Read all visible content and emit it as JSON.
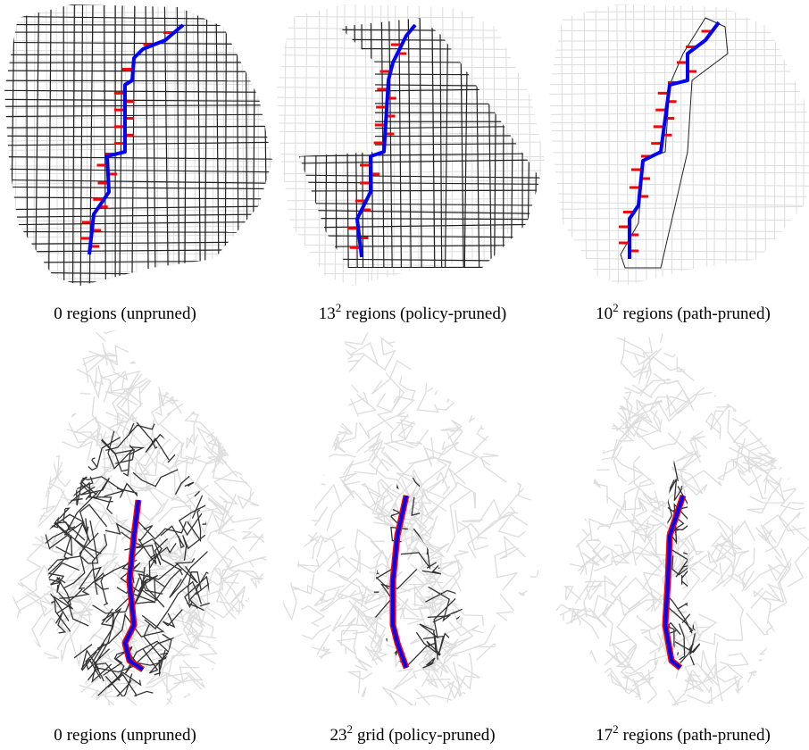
{
  "panels": [
    {
      "caption": {
        "base": "0",
        "text": "regions (unpruned)"
      }
    },
    {
      "caption": {
        "base": "13",
        "exp": "2",
        "text": "regions (policy-pruned)"
      }
    },
    {
      "caption": {
        "base": "10",
        "exp": "2",
        "text": "regions (path-pruned)"
      }
    },
    {
      "caption": {
        "base": "0",
        "text": "regions (unpruned)"
      }
    },
    {
      "caption": {
        "base": "23",
        "exp": "2",
        "text": "grid (policy-pruned)"
      }
    },
    {
      "caption": {
        "base": "17",
        "exp": "2",
        "text": "regions (path-pruned)"
      }
    }
  ]
}
